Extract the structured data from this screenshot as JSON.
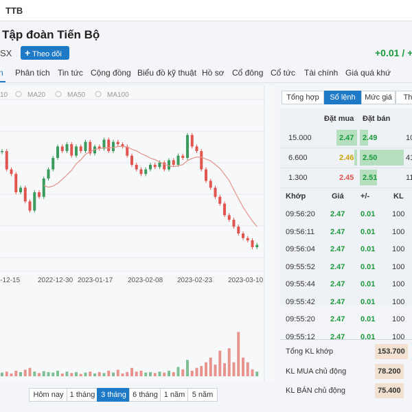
{
  "header": {
    "symbol": "TTB"
  },
  "stock": {
    "name": "Tập đoàn Tiến Bộ",
    "exchange": "SX",
    "follow_button": "Theo dõi",
    "change": "+0.01 / +"
  },
  "tabs": [
    "n",
    "Phân tích",
    "Tin tức",
    "Cộng đồng",
    "Biểu đồ kỹ thuật",
    "Hồ sơ",
    "Cổ đông",
    "Cổ tức",
    "Tài chính",
    "Giá quá khứ"
  ],
  "chart": {
    "legend": [
      "10",
      "MA20",
      "MA50",
      "MA100"
    ],
    "dates": [
      "2022-12-15",
      "2022-12-30",
      "2023-01-17",
      "2023-02-08",
      "2023-02-23",
      "2023-03-10"
    ],
    "closes": [
      2.88,
      2.8,
      2.78,
      2.7,
      2.72,
      2.66,
      2.62,
      2.7,
      2.68,
      2.76,
      2.8,
      2.85,
      2.9,
      2.88,
      2.91,
      2.86,
      2.9,
      2.88,
      2.92,
      2.87,
      2.9,
      2.89,
      2.93,
      2.88,
      2.92,
      2.91,
      2.9,
      2.86,
      2.82,
      2.8,
      2.78,
      2.8,
      2.82,
      2.81,
      2.83,
      2.8,
      2.84,
      2.82,
      2.86,
      2.85,
      2.95,
      2.9,
      2.88,
      2.8,
      2.75,
      2.72,
      2.68,
      2.65,
      2.6,
      2.58,
      2.55,
      2.52,
      2.5,
      2.49,
      2.46,
      2.47
    ],
    "volumes": [
      8,
      10,
      6,
      12,
      9,
      14,
      18,
      10,
      7,
      11,
      9,
      8,
      12,
      6,
      10,
      7,
      9,
      5,
      8,
      10,
      6,
      9,
      7,
      12,
      8,
      14,
      6,
      9,
      18,
      10,
      12,
      8,
      9,
      7,
      10,
      8,
      12,
      9,
      20,
      15,
      35,
      12,
      18,
      22,
      30,
      40,
      25,
      55,
      28,
      60,
      30,
      95,
      40,
      30,
      15,
      10
    ],
    "ylim": [
      2.4,
      3.0
    ],
    "volume_lim": [
      0,
      100
    ]
  },
  "range_buttons": [
    "Hôm nay",
    "1 tháng",
    "3 tháng",
    "6 tháng",
    "1 năm",
    "5 năm"
  ],
  "panel": {
    "tabs": [
      "Tổng hợp",
      "Sổ lệnh",
      "Mức giá",
      "Thố"
    ],
    "book_headers": [
      "Đặt mua",
      "Đặt bán"
    ],
    "book_rows": [
      [
        "15.000",
        "2.47",
        "2.49",
        "10"
      ],
      [
        "6.600",
        "2.46",
        "2.50",
        "41"
      ],
      [
        "1.300",
        "2.45",
        "2.51",
        "11"
      ]
    ],
    "trade_headers": [
      "Khớp",
      "Giá",
      "+/-",
      "KL"
    ],
    "trade_rows": [
      [
        "09:56:20",
        "2.47",
        "0.01",
        "100"
      ],
      [
        "09:56:11",
        "2.47",
        "0.01",
        "100"
      ],
      [
        "09:56:04",
        "2.47",
        "0.01",
        "100"
      ],
      [
        "09:55:52",
        "2.47",
        "0.01",
        "100"
      ],
      [
        "09:55:44",
        "2.47",
        "0.01",
        "100"
      ],
      [
        "09:55:42",
        "2.47",
        "0.01",
        "100"
      ],
      [
        "09:55:20",
        "2.47",
        "0.01",
        "100"
      ],
      [
        "09:55:12",
        "2.47",
        "0.01",
        "100"
      ]
    ],
    "totals": [
      [
        "Tổng KL khớp",
        "153.700"
      ],
      [
        "KL MUA chủ động",
        "78.200"
      ],
      [
        "KL BÁN chủ động",
        "75.400"
      ]
    ]
  }
}
